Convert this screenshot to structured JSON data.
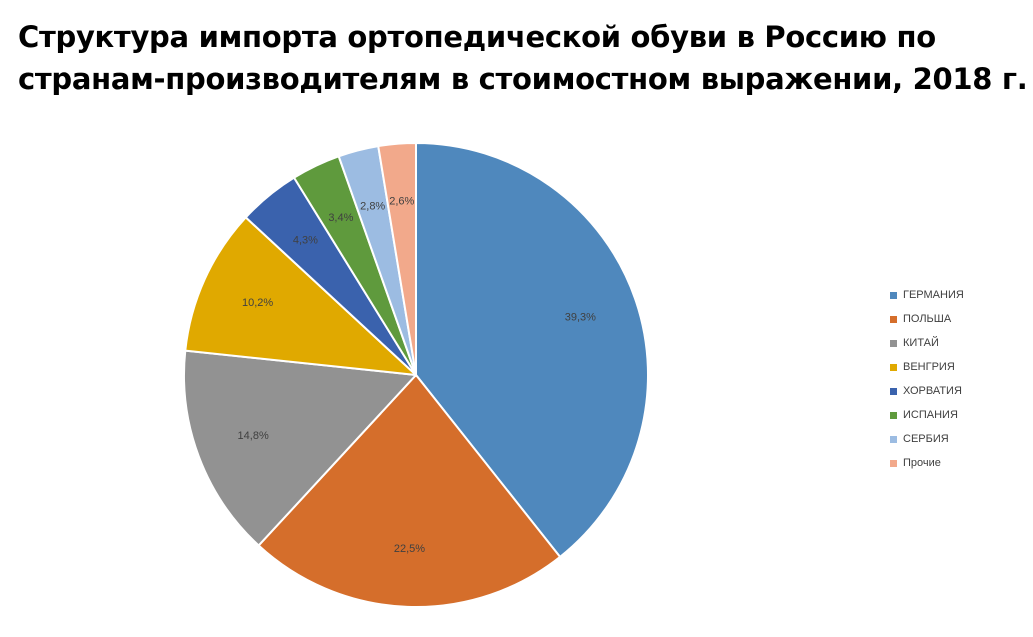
{
  "chart_data": {
    "type": "pie",
    "title": "Структура импорта ортопедической обуви в Россию по странам-производителям в стоимостном выражении, 2018 г.",
    "slices": [
      {
        "name": "ГЕРМАНИЯ",
        "value": 39.3,
        "label": "39,3%",
        "color": "#4f88bd"
      },
      {
        "name": "ПОЛЬША",
        "value": 22.5,
        "label": "22,5%",
        "color": "#d56e2b"
      },
      {
        "name": "КИТАЙ",
        "value": 14.8,
        "label": "14,8%",
        "color": "#929292"
      },
      {
        "name": "ВЕНГРИЯ",
        "value": 10.2,
        "label": "10,2%",
        "color": "#e0a900"
      },
      {
        "name": "ХОРВАТИЯ",
        "value": 4.3,
        "label": "4,3%",
        "color": "#3a62ad"
      },
      {
        "name": "ИСПАНИЯ",
        "value": 3.4,
        "label": "3,4%",
        "color": "#5f9a3d"
      },
      {
        "name": "СЕРБИЯ",
        "value": 2.8,
        "label": "2,8%",
        "color": "#9cbce2"
      },
      {
        "name": "Прочие",
        "value": 2.6,
        "label": "2,6%",
        "color": "#f2a98b"
      }
    ],
    "legend_position": "right"
  }
}
